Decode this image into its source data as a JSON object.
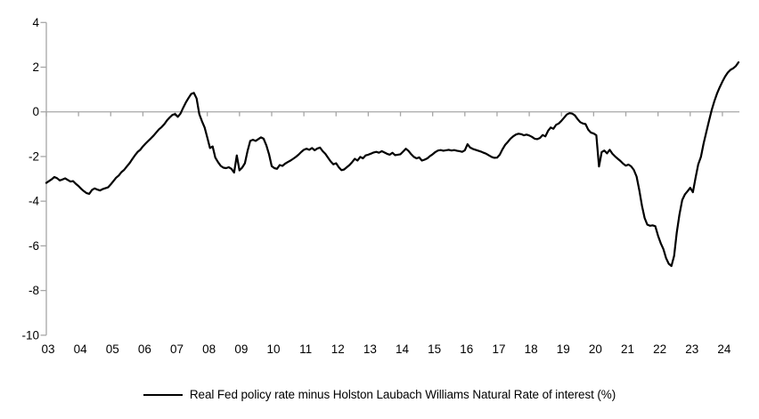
{
  "chart_data": {
    "type": "line",
    "title": "",
    "xlabel": "",
    "ylabel": "",
    "ylim": [
      -10,
      4
    ],
    "y_ticks": [
      4,
      2,
      0,
      -2,
      -4,
      -6,
      -8,
      -10
    ],
    "x_tick_labels": [
      "03",
      "04",
      "05",
      "06",
      "07",
      "08",
      "09",
      "10",
      "11",
      "12",
      "13",
      "14",
      "15",
      "16",
      "17",
      "18",
      "19",
      "20",
      "21",
      "22",
      "23",
      "24"
    ],
    "x_start": "2003-01",
    "x_frequency": "monthly",
    "x_end": "2024-07",
    "grid": "zero-line-only",
    "legend_position": "bottom-center",
    "axis_color": "#A6A6A6",
    "text_color": "#000000",
    "series": [
      {
        "name": "Real Fed policy rate minus Holston Laubach Williams Natural Rate of interest (%)",
        "color": "#000000",
        "values": [
          -3.18,
          -3.1,
          -3.02,
          -2.92,
          -2.97,
          -3.07,
          -3.03,
          -2.98,
          -3.05,
          -3.12,
          -3.1,
          -3.22,
          -3.32,
          -3.45,
          -3.55,
          -3.64,
          -3.67,
          -3.5,
          -3.43,
          -3.48,
          -3.52,
          -3.46,
          -3.42,
          -3.38,
          -3.25,
          -3.1,
          -2.95,
          -2.85,
          -2.7,
          -2.6,
          -2.45,
          -2.3,
          -2.12,
          -1.95,
          -1.8,
          -1.7,
          -1.55,
          -1.42,
          -1.3,
          -1.18,
          -1.06,
          -0.92,
          -0.78,
          -0.68,
          -0.55,
          -0.38,
          -0.25,
          -0.14,
          -0.1,
          -0.22,
          -0.08,
          0.18,
          0.42,
          0.62,
          0.8,
          0.85,
          0.6,
          -0.1,
          -0.42,
          -0.7,
          -1.15,
          -1.62,
          -1.55,
          -2.05,
          -2.25,
          -2.42,
          -2.5,
          -2.52,
          -2.48,
          -2.55,
          -2.72,
          -1.95,
          -2.62,
          -2.5,
          -2.3,
          -1.75,
          -1.3,
          -1.25,
          -1.3,
          -1.22,
          -1.14,
          -1.2,
          -1.5,
          -1.9,
          -2.43,
          -2.52,
          -2.55,
          -2.38,
          -2.42,
          -2.32,
          -2.25,
          -2.18,
          -2.1,
          -2.02,
          -1.92,
          -1.8,
          -1.7,
          -1.65,
          -1.7,
          -1.62,
          -1.72,
          -1.64,
          -1.6,
          -1.76,
          -1.88,
          -2.05,
          -2.22,
          -2.35,
          -2.3,
          -2.48,
          -2.61,
          -2.58,
          -2.48,
          -2.38,
          -2.25,
          -2.1,
          -2.18,
          -2.02,
          -2.08,
          -1.95,
          -1.92,
          -1.87,
          -1.82,
          -1.79,
          -1.83,
          -1.76,
          -1.82,
          -1.88,
          -1.92,
          -1.83,
          -1.94,
          -1.92,
          -1.9,
          -1.78,
          -1.65,
          -1.75,
          -1.9,
          -2.02,
          -2.08,
          -2.04,
          -2.18,
          -2.14,
          -2.08,
          -1.98,
          -1.9,
          -1.8,
          -1.73,
          -1.71,
          -1.74,
          -1.72,
          -1.7,
          -1.73,
          -1.71,
          -1.74,
          -1.76,
          -1.79,
          -1.72,
          -1.45,
          -1.6,
          -1.66,
          -1.7,
          -1.74,
          -1.78,
          -1.83,
          -1.88,
          -1.95,
          -2.02,
          -2.06,
          -2.05,
          -1.92,
          -1.68,
          -1.48,
          -1.35,
          -1.2,
          -1.1,
          -1.02,
          -0.98,
          -1.0,
          -1.05,
          -1.02,
          -1.06,
          -1.12,
          -1.2,
          -1.22,
          -1.17,
          -1.04,
          -1.1,
          -0.85,
          -0.7,
          -0.76,
          -0.58,
          -0.52,
          -0.4,
          -0.26,
          -0.12,
          -0.06,
          -0.08,
          -0.16,
          -0.32,
          -0.46,
          -0.52,
          -0.55,
          -0.8,
          -0.93,
          -0.97,
          -1.05,
          -2.45,
          -1.8,
          -1.73,
          -1.86,
          -1.7,
          -1.88,
          -2.0,
          -2.1,
          -2.2,
          -2.32,
          -2.41,
          -2.36,
          -2.44,
          -2.6,
          -2.9,
          -3.5,
          -4.2,
          -4.75,
          -5.05,
          -5.1,
          -5.08,
          -5.12,
          -5.55,
          -5.88,
          -6.15,
          -6.55,
          -6.8,
          -6.9,
          -6.45,
          -5.4,
          -4.6,
          -3.95,
          -3.7,
          -3.55,
          -3.4,
          -3.6,
          -2.95,
          -2.35,
          -2.02,
          -1.42,
          -0.9,
          -0.4,
          0.08,
          0.48,
          0.82,
          1.1,
          1.35,
          1.58,
          1.76,
          1.88,
          1.95,
          2.05,
          2.22
        ]
      }
    ]
  },
  "legend": {
    "label": "Real Fed policy rate minus Holston Laubach Williams Natural Rate of interest (%)"
  }
}
